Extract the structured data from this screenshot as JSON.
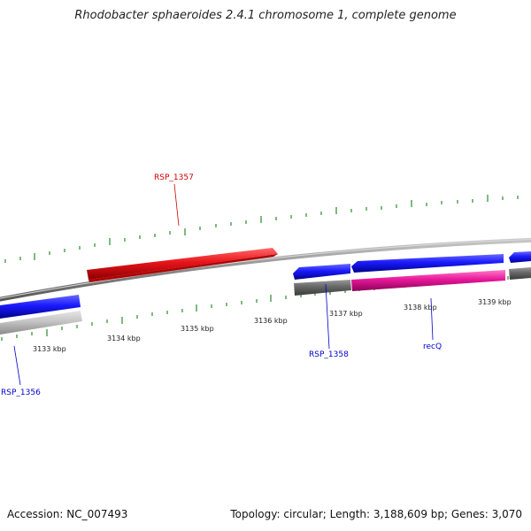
{
  "title": "Rhodobacter sphaeroides 2.4.1 chromosome 1, complete genome",
  "footer": {
    "accession": "Accession: NC_007493",
    "summary": "Topology: circular; Length: 3,188,609 bp; Genes: 3,070"
  },
  "tick_labels": [
    "3133 kbp",
    "3134 kbp",
    "3135 kbp",
    "3136 kbp",
    "3137 kbp",
    "3138 kbp",
    "3139 kbp"
  ],
  "genes": [
    {
      "name": "RSP_1357",
      "color": "#cc0000"
    },
    {
      "name": "RSP_1356",
      "color": "#0000cc"
    },
    {
      "name": "RSP_1358",
      "color": "#0000cc"
    },
    {
      "name": "recQ",
      "color": "#0000cc"
    }
  ],
  "colors": {
    "forward_gene": "#e8141b",
    "reverse_gene": "#1a1aff",
    "rna": "#e8179a",
    "backbone": "#8a8a8a",
    "gray_feature": "#666666",
    "light_feature": "#c4c4c4",
    "ticks": "#2a8a2a"
  }
}
